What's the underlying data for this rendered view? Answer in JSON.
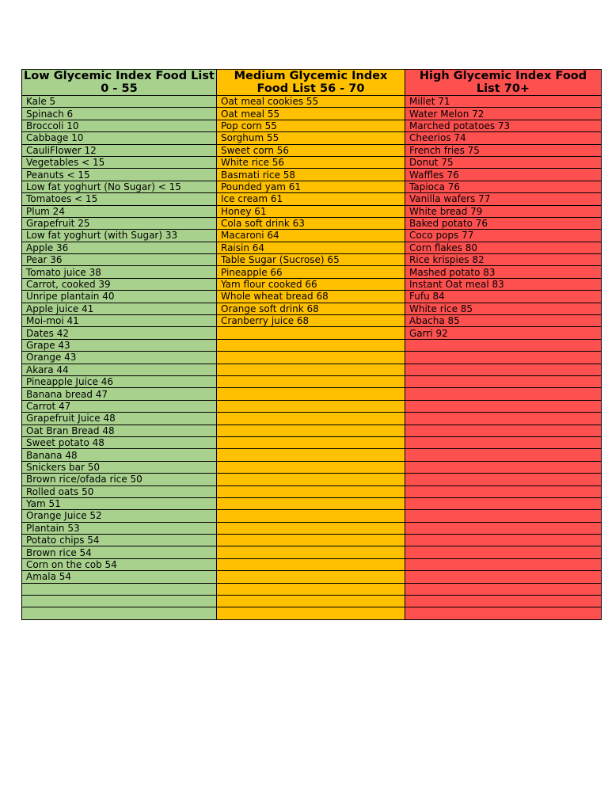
{
  "table": {
    "headers": [
      "Low Glycemic Index Food List 0 - 55",
      "Medium Glycemic Index Food List 56 - 70",
      "High Glycemic Index Food List 70+"
    ],
    "rows": [
      [
        "Kale 5",
        "Oat meal cookies 55",
        "Millet 71"
      ],
      [
        "Spinach 6",
        "Oat meal 55",
        "Water Melon 72"
      ],
      [
        "Broccoli 10",
        "Pop corn 55",
        "Marched potatoes 73"
      ],
      [
        "Cabbage 10",
        "Sorghum 55",
        "Cheerios 74"
      ],
      [
        "CauliFlower 12",
        "Sweet corn 56",
        "French fries 75"
      ],
      [
        "Vegetables < 15",
        "White rice 56",
        "Donut 75"
      ],
      [
        "Peanuts < 15",
        "Basmati rice 58",
        "Waffles 76"
      ],
      [
        "Low fat yoghurt (No Sugar) < 15",
        "Pounded yam 61",
        "Tapioca 76"
      ],
      [
        "Tomatoes < 15",
        "Ice cream 61",
        "Vanilla wafers 77"
      ],
      [
        "Plum 24",
        "Honey 61",
        "White bread 79"
      ],
      [
        "Grapefruit 25",
        "Cola soft drink 63",
        "Baked potato 76"
      ],
      [
        "Low fat yoghurt (with Sugar) 33",
        "Macaroni 64",
        "Coco pops 77"
      ],
      [
        "Apple 36",
        "Raisin 64",
        "Corn flakes 80"
      ],
      [
        "Pear 36",
        "Table Sugar (Sucrose) 65",
        "Rice krispies 82"
      ],
      [
        "Tomato juice 38",
        "Pineapple 66",
        "Mashed potato 83"
      ],
      [
        "Carrot, cooked 39",
        "Yam flour cooked 66",
        "Instant Oat meal 83"
      ],
      [
        "Unripe plantain 40",
        "Whole wheat bread 68",
        "Fufu 84"
      ],
      [
        "Apple juice 41",
        "Orange soft drink 68",
        "White rice 85"
      ],
      [
        "Moi-moi 41",
        "Cranberry juice 68",
        "Abacha 85"
      ],
      [
        "Dates 42",
        "",
        "Garri 92"
      ],
      [
        "Grape 43",
        "",
        ""
      ],
      [
        "Orange 43",
        "",
        ""
      ],
      [
        "Akara 44",
        "",
        ""
      ],
      [
        "Pineapple Juice 46",
        "",
        ""
      ],
      [
        "Banana bread 47",
        "",
        ""
      ],
      [
        "Carrot 47",
        "",
        ""
      ],
      [
        "Grapefruit Juice 48",
        "",
        ""
      ],
      [
        "Oat Bran Bread 48",
        "",
        ""
      ],
      [
        "Sweet potato 48",
        "",
        ""
      ],
      [
        "Banana 48",
        "",
        ""
      ],
      [
        "Snickers bar 50",
        "",
        ""
      ],
      [
        "Brown rice/ofada rice 50",
        "",
        ""
      ],
      [
        "Rolled oats 50",
        "",
        ""
      ],
      [
        "Yam 51",
        "",
        ""
      ],
      [
        "Orange Juice 52",
        "",
        ""
      ],
      [
        "Plantain 53",
        "",
        ""
      ],
      [
        "Potato chips 54",
        "",
        ""
      ],
      [
        "Brown rice 54",
        "",
        ""
      ],
      [
        "Corn on the cob 54",
        "",
        ""
      ],
      [
        "Amala 54",
        "",
        ""
      ],
      [
        "",
        "",
        ""
      ],
      [
        "",
        "",
        ""
      ],
      [
        "",
        "",
        ""
      ]
    ],
    "colors": {
      "low": "#a9d18e",
      "medium": "#ffc000",
      "high": "#ff5050"
    }
  }
}
